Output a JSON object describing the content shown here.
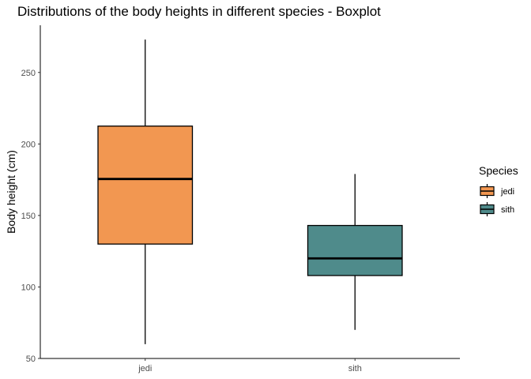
{
  "chart_data": {
    "type": "boxplot",
    "title": "Distributions of the body heights in different species - Boxplot",
    "xlabel": "",
    "ylabel": "Body height (cm)",
    "ylim": [
      50,
      283
    ],
    "yticks": [
      50,
      100,
      150,
      200,
      250
    ],
    "grid": false,
    "categories": [
      "jedi",
      "sith"
    ],
    "boxes": [
      {
        "category": "jedi",
        "min": 60,
        "q1": 130,
        "median": 175.5,
        "q3": 212.5,
        "max": 273,
        "color": "#f29751"
      },
      {
        "category": "sith",
        "min": 70,
        "q1": 108,
        "median": 120,
        "q3": 143,
        "max": 179,
        "color": "#4f8b8b"
      }
    ],
    "legend": {
      "title": "Species",
      "position": "right",
      "entries": [
        {
          "label": "jedi",
          "color": "#f29751"
        },
        {
          "label": "sith",
          "color": "#4f8b8b"
        }
      ]
    }
  }
}
